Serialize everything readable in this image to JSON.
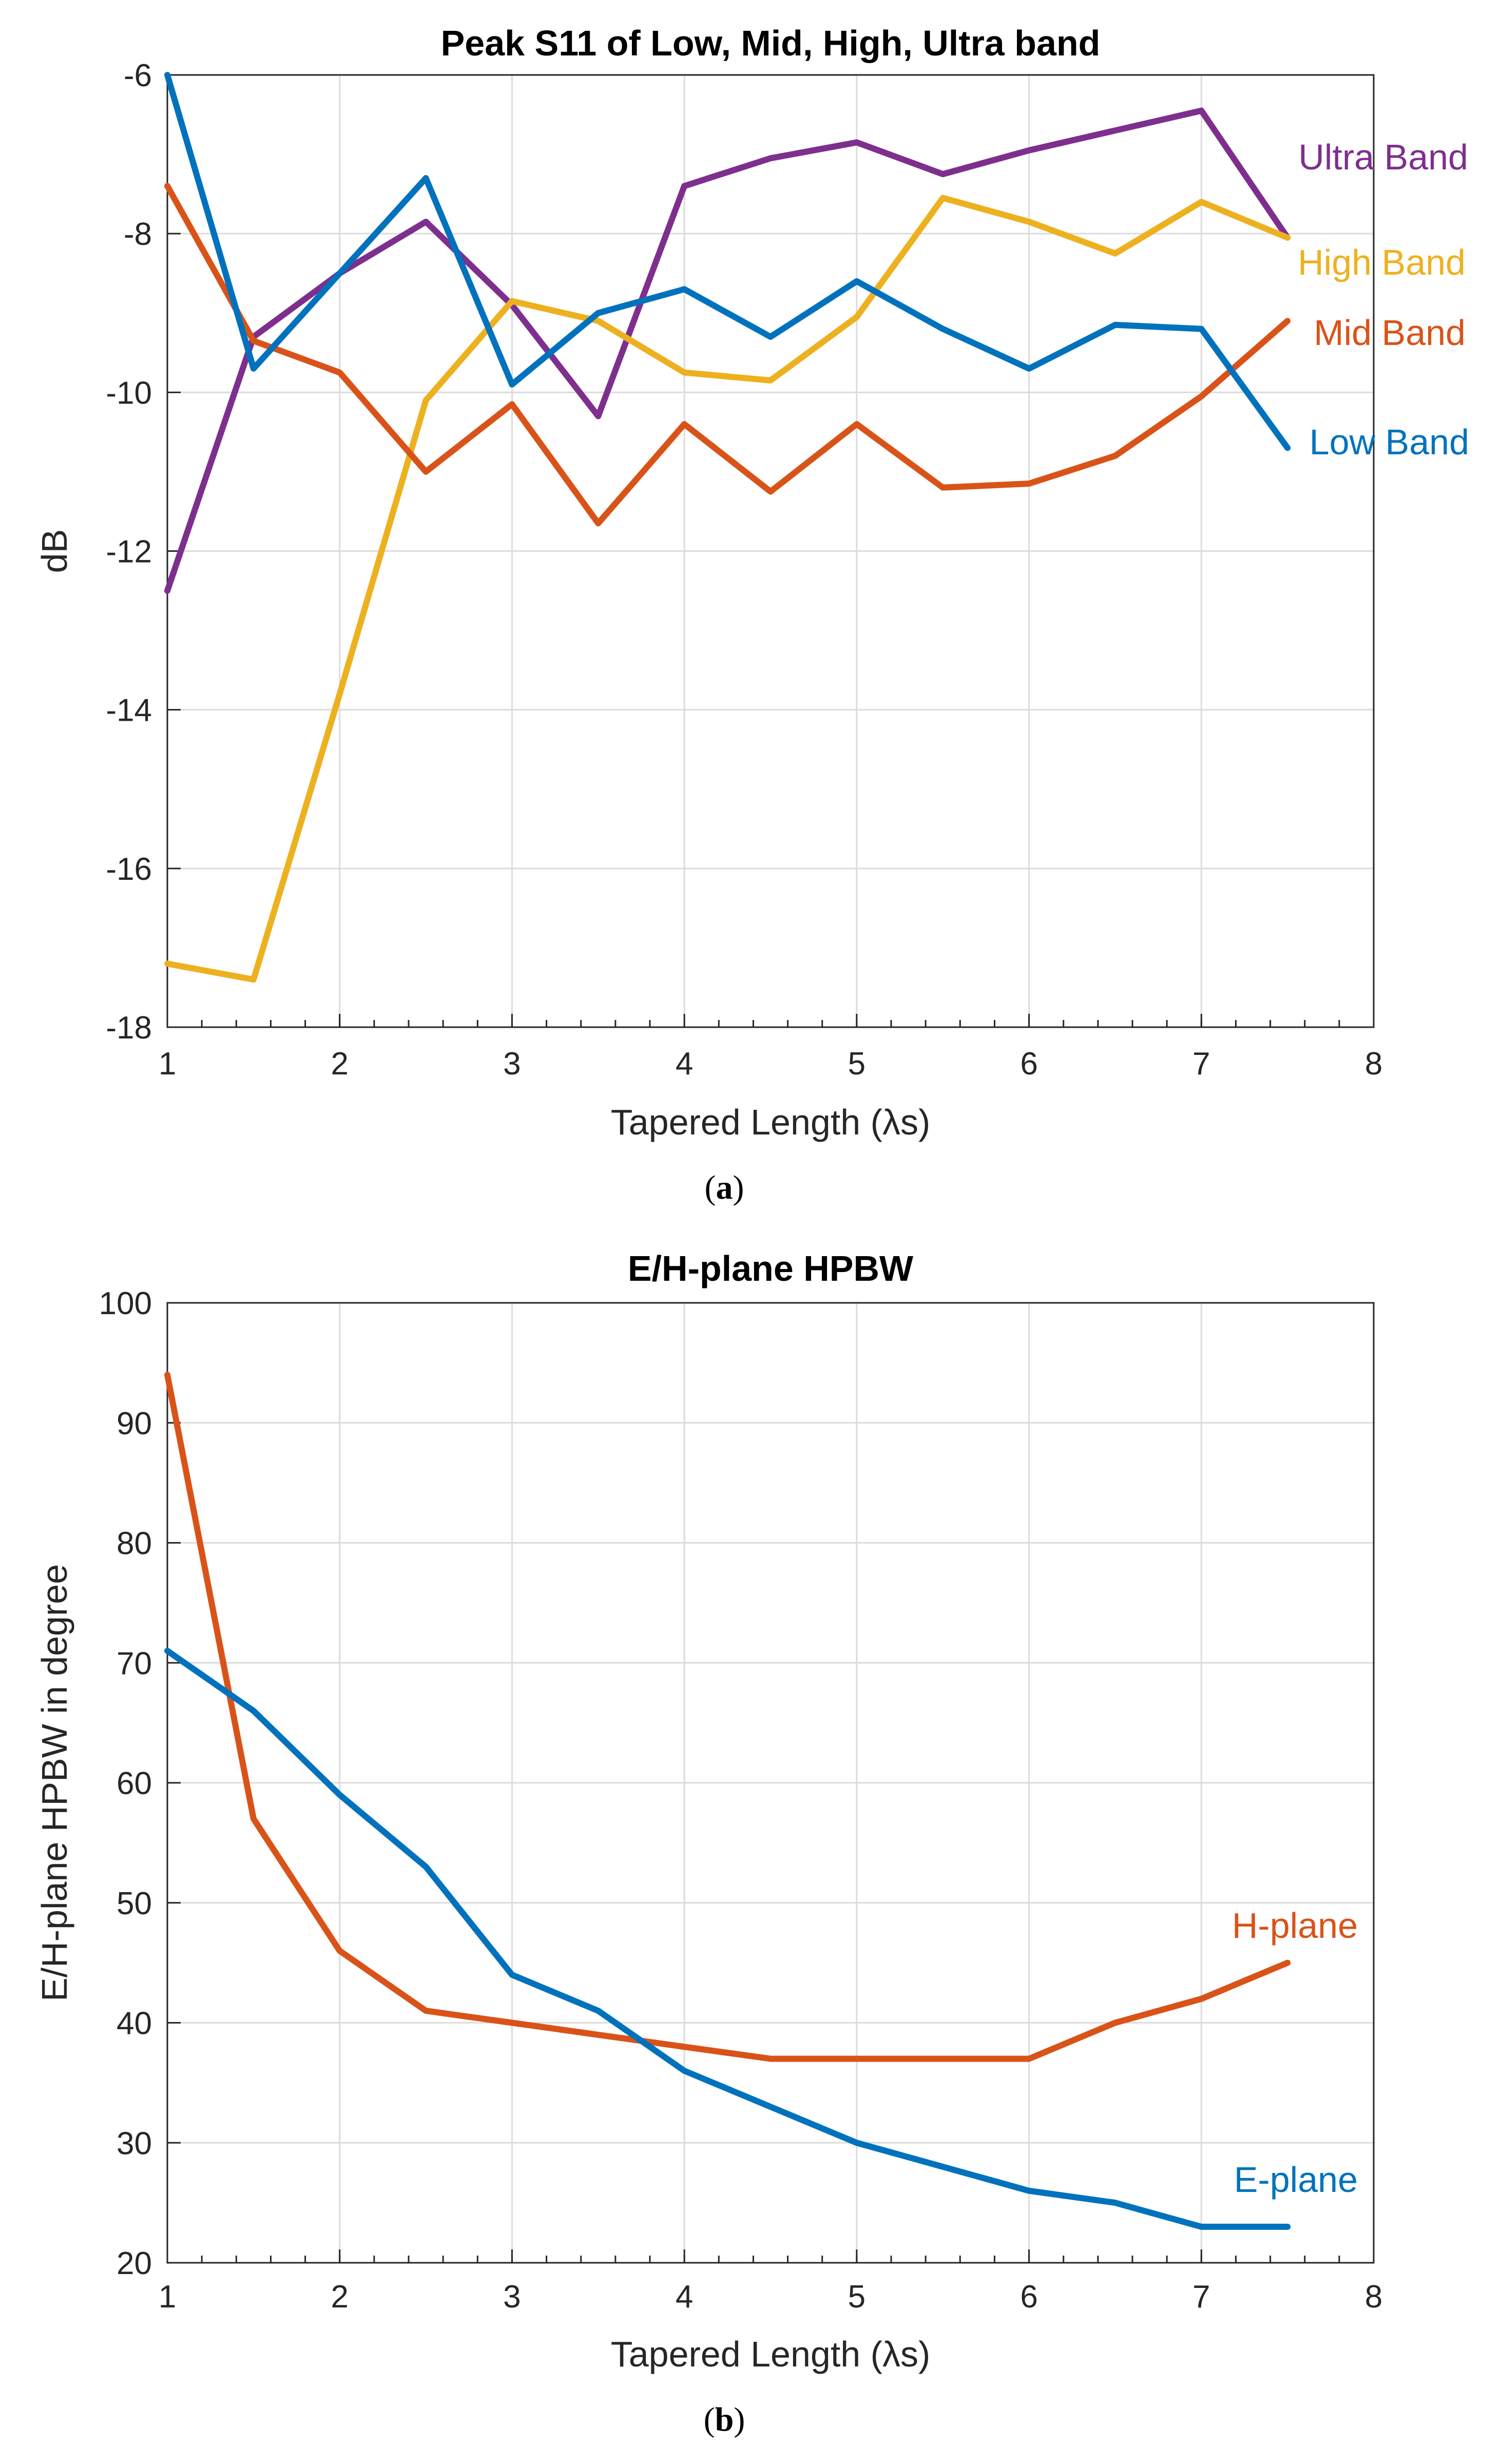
{
  "chart_data": [
    {
      "type": "line",
      "title": "Peak S11 of Low, Mid, High, Ultra band",
      "xlabel": "Tapered Length (λs)",
      "ylabel": "dB",
      "xlim": [
        1,
        8
      ],
      "ylim": [
        -18,
        -6
      ],
      "xticks": [
        1,
        2,
        3,
        4,
        5,
        6,
        7,
        8
      ],
      "yticks": [
        -18,
        -16,
        -14,
        -12,
        -10,
        -8,
        -6
      ],
      "grid": true,
      "caption_letter": "a",
      "x": [
        1,
        1.5,
        2,
        2.5,
        3,
        3.5,
        4,
        4.5,
        5,
        5.5,
        6,
        6.5,
        7,
        7.5
      ],
      "series": [
        {
          "name": "Ultra Band",
          "color": "#7E2F8E",
          "values": [
            -12.5,
            -9.3,
            -8.5,
            -7.85,
            -8.9,
            -10.3,
            -7.4,
            -7.05,
            -6.85,
            -7.25,
            -6.95,
            -6.7,
            -6.45,
            -8.05
          ]
        },
        {
          "name": "High Band",
          "color": "#EDB120",
          "values": [
            -17.2,
            -17.4,
            -13.8,
            -10.1,
            -8.85,
            -9.1,
            -9.75,
            -9.85,
            -9.05,
            -7.55,
            -7.85,
            -8.25,
            -7.6,
            -8.05
          ]
        },
        {
          "name": "Mid Band",
          "color": "#D95319",
          "values": [
            -7.4,
            -9.35,
            -9.75,
            -11.0,
            -10.15,
            -11.65,
            -10.4,
            -11.25,
            -10.4,
            -11.2,
            -11.15,
            -10.8,
            -10.05,
            -9.1
          ]
        },
        {
          "name": "Low Band",
          "color": "#0072BD",
          "values": [
            -6.0,
            -9.7,
            -8.5,
            -7.3,
            -9.9,
            -9.0,
            -8.7,
            -9.3,
            -8.6,
            -9.2,
            -9.7,
            -9.15,
            -9.2,
            -10.7
          ]
        }
      ]
    },
    {
      "type": "line",
      "title": "E/H-plane HPBW",
      "xlabel": "Tapered Length (λs)",
      "ylabel": "E/H-plane HPBW in degree",
      "xlim": [
        1,
        8
      ],
      "ylim": [
        20,
        100
      ],
      "xticks": [
        1,
        2,
        3,
        4,
        5,
        6,
        7,
        8
      ],
      "yticks": [
        20,
        30,
        40,
        50,
        60,
        70,
        80,
        90,
        100
      ],
      "grid": true,
      "caption_letter": "b",
      "x": [
        1,
        1.5,
        2,
        2.5,
        3,
        3.5,
        4,
        4.5,
        5,
        5.5,
        6,
        6.5,
        7,
        7.5
      ],
      "series": [
        {
          "name": "H-plane",
          "color": "#D95319",
          "values": [
            94,
            57,
            46,
            41,
            40,
            39,
            38,
            37,
            37,
            37,
            37,
            40,
            42,
            45
          ]
        },
        {
          "name": "E-plane",
          "color": "#0072BD",
          "values": [
            71,
            66,
            59,
            53,
            44,
            41,
            36,
            33,
            30,
            28,
            26,
            25,
            23,
            23
          ]
        }
      ]
    }
  ]
}
